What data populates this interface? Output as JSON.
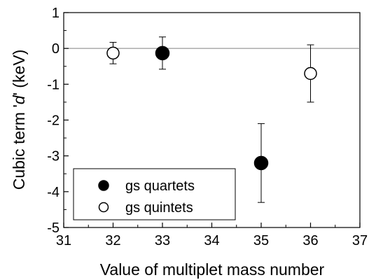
{
  "chart_data": {
    "type": "scatter",
    "xlabel": "Value of multiplet mass number",
    "ylabel_parts": [
      "Cubic term '",
      "d",
      "' (keV)"
    ],
    "xlim": [
      31,
      37
    ],
    "ylim": [
      -5,
      1
    ],
    "xticks": [
      "31",
      "32",
      "33",
      "34",
      "35",
      "36",
      "37"
    ],
    "yticks": [
      "1",
      "0",
      "-1",
      "-2",
      "-3",
      "-4",
      "-5"
    ],
    "reference_line_y": 0,
    "legend_placement": "bottom-left",
    "series": [
      {
        "name": "gs quartets",
        "marker": "filled-circle",
        "points": [
          {
            "x": 33,
            "y": -0.13,
            "err": 0.45
          },
          {
            "x": 35,
            "y": -3.2,
            "err": 1.1
          }
        ]
      },
      {
        "name": "gs quintets",
        "marker": "open-circle",
        "points": [
          {
            "x": 32,
            "y": -0.13,
            "err": 0.3
          },
          {
            "x": 36,
            "y": -0.7,
            "err": 0.8
          }
        ]
      }
    ]
  }
}
